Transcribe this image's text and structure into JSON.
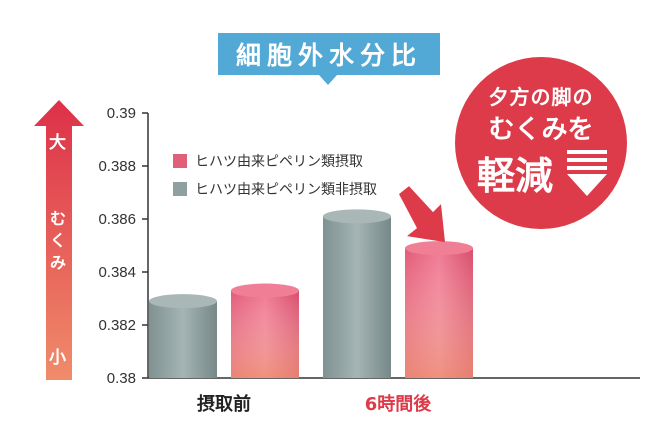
{
  "chart_data": {
    "type": "bar",
    "title": "細胞外水分比",
    "categories": [
      "摂取前",
      "6時間後"
    ],
    "series": [
      {
        "name": "ヒハツ由来ピペリン類摂取",
        "values": [
          0.3833,
          0.3849
        ]
      },
      {
        "name": "ヒハツ由来ピペリン類非摂取",
        "values": [
          0.3829,
          0.3861
        ]
      }
    ],
    "ylim": [
      0.38,
      0.39
    ],
    "yticks": [
      "0.39",
      "0.388",
      "0.386",
      "0.384",
      "0.382",
      "0.38"
    ],
    "legend": "top-left",
    "grid": false,
    "colors": {
      "intake": "#e0607a",
      "non_intake": "#8fa0a0",
      "highlight": "#dd3b4a",
      "title_bg": "#52a9d6",
      "category2": "#dd3b4a"
    }
  },
  "y_axis_label": {
    "top": "大",
    "middle": "むくみ",
    "bottom": "小"
  },
  "badge": {
    "line1": "夕方の脚の",
    "line2": "むくみを",
    "line3": "軽減"
  }
}
